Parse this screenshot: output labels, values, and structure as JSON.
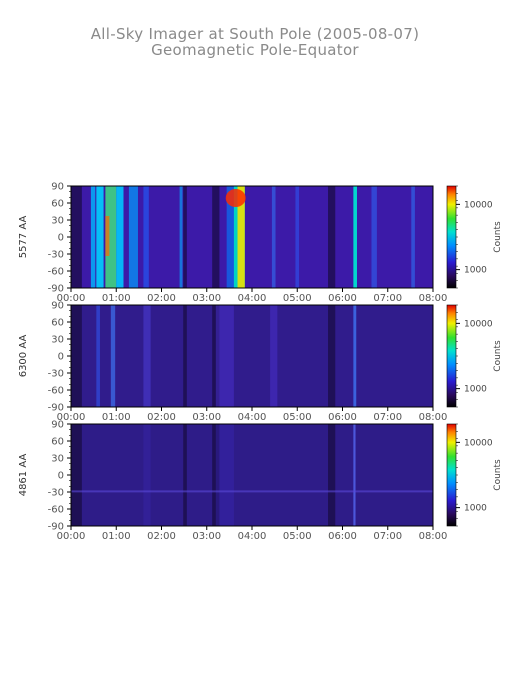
{
  "title": "All-Sky Imager at South Pole (2005-08-07)",
  "subtitle": "Geomagnetic Pole-Equator",
  "chart_data": [
    {
      "type": "heatmap",
      "ylabel": "5577 AA",
      "x_ticks": [
        "00:00",
        "01:00",
        "02:00",
        "03:00",
        "04:00",
        "05:00",
        "06:00",
        "07:00",
        "08:00"
      ],
      "y_ticks": [
        "90",
        "60",
        "30",
        "0",
        "-30",
        "-60",
        "-90"
      ],
      "xlim": [
        0,
        8
      ],
      "ylim": [
        -90,
        90
      ],
      "colorbar": {
        "label": "Counts",
        "ticks": [
          "10000",
          "1000"
        ],
        "scale": "log"
      },
      "colors": {
        "background": "#3c1aa8",
        "bright": "#00c8ff",
        "hot": "#ff2a00"
      }
    },
    {
      "type": "heatmap",
      "ylabel": "6300 AA",
      "x_ticks": [
        "00:00",
        "01:00",
        "02:00",
        "03:00",
        "04:00",
        "05:00",
        "06:00",
        "07:00",
        "08:00"
      ],
      "y_ticks": [
        "90",
        "60",
        "30",
        "0",
        "-30",
        "-60",
        "-90"
      ],
      "xlim": [
        0,
        8
      ],
      "ylim": [
        -90,
        90
      ],
      "colorbar": {
        "label": "Counts",
        "ticks": [
          "10000",
          "1000"
        ],
        "scale": "log"
      },
      "colors": {
        "background": "#301c8c",
        "bright": "#2a6cff",
        "hot": "#ff2a00"
      }
    },
    {
      "type": "heatmap",
      "ylabel": "4861 AA",
      "x_ticks": [
        "00:00",
        "01:00",
        "02:00",
        "03:00",
        "04:00",
        "05:00",
        "06:00",
        "07:00",
        "08:00"
      ],
      "y_ticks": [
        "90",
        "60",
        "30",
        "0",
        "-30",
        "-60",
        "-90"
      ],
      "xlim": [
        0,
        8
      ],
      "ylim": [
        -90,
        90
      ],
      "colorbar": {
        "label": "Counts",
        "ticks": [
          "10000",
          "1000"
        ],
        "scale": "log"
      },
      "colors": {
        "background": "#2e1c88",
        "bright": "#3a48e0",
        "hot": "#ff2a00"
      }
    }
  ]
}
